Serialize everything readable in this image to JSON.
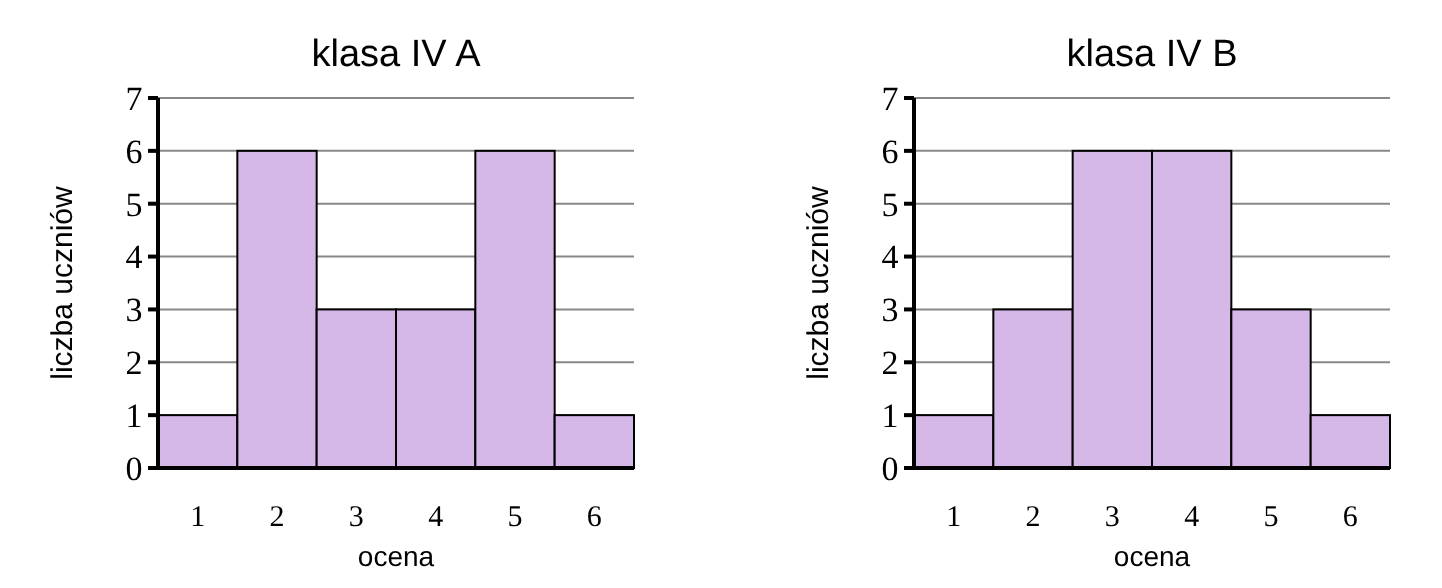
{
  "chart_data": [
    {
      "type": "bar",
      "title": "klasa IV A",
      "xlabel": "ocena",
      "ylabel": "liczba uczniów",
      "categories": [
        "1",
        "2",
        "3",
        "4",
        "5",
        "6"
      ],
      "values": [
        1,
        6,
        3,
        3,
        6,
        1
      ],
      "color": "#d5b8e8",
      "ylim": [
        0,
        7
      ],
      "yticks": [
        0,
        1,
        2,
        3,
        4,
        5,
        6,
        7
      ],
      "grid": "y"
    },
    {
      "type": "bar",
      "title": "klasa IV B",
      "xlabel": "ocena",
      "ylabel": "liczba uczniów",
      "categories": [
        "1",
        "2",
        "3",
        "4",
        "5",
        "6"
      ],
      "values": [
        1,
        3,
        6,
        6,
        3,
        1
      ],
      "color": "#d5b8e8",
      "ylim": [
        0,
        7
      ],
      "yticks": [
        0,
        1,
        2,
        3,
        4,
        5,
        6,
        7
      ],
      "grid": "y"
    }
  ]
}
